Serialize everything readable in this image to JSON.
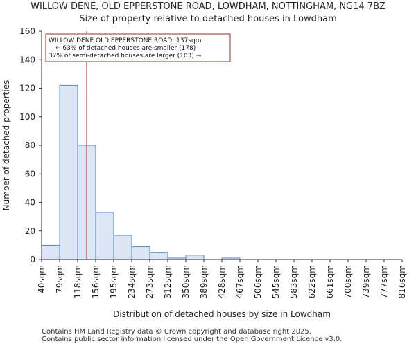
{
  "title_line1": "WILLOW DENE, OLD EPPERSTONE ROAD, LOWDHAM, NOTTINGHAM, NG14 7BZ",
  "title_line2": "Size of property relative to detached houses in Lowdham",
  "footer_line1": "Contains HM Land Registry data © Crown copyright and database right 2025.",
  "footer_line2": "Contains public sector information licensed under the Open Government Licence v3.0.",
  "colors": {
    "bar_fill": "#dce6f5",
    "bar_stroke": "#5a87c5",
    "marker": "#b22222"
  },
  "chart_data": {
    "type": "bar",
    "title": "Size of property relative to detached houses in Lowdham",
    "xlabel": "Distribution of detached houses by size in Lowdham",
    "ylabel": "Number of detached properties",
    "ylim": [
      0,
      160
    ],
    "yticks": [
      0,
      20,
      40,
      60,
      80,
      100,
      120,
      140,
      160
    ],
    "bin_edges": [
      40,
      79,
      118,
      156,
      195,
      234,
      273,
      312,
      350,
      389,
      428,
      467,
      506,
      545,
      583,
      622,
      661,
      700,
      739,
      777,
      816
    ],
    "tick_labels": [
      "40sqm",
      "79sqm",
      "118sqm",
      "156sqm",
      "195sqm",
      "234sqm",
      "273sqm",
      "312sqm",
      "350sqm",
      "389sqm",
      "428sqm",
      "467sqm",
      "506sqm",
      "545sqm",
      "583sqm",
      "622sqm",
      "661sqm",
      "700sqm",
      "739sqm",
      "777sqm",
      "816sqm"
    ],
    "values": [
      10,
      122,
      80,
      33,
      17,
      9,
      5,
      1,
      3,
      0,
      1,
      0,
      0,
      0,
      0,
      0,
      0,
      0,
      0,
      0
    ],
    "marker_value": 137,
    "annotation": {
      "line1": "WILLOW DENE OLD EPPERSTONE ROAD: 137sqm",
      "line2": "← 63% of detached houses are smaller (178)",
      "line3": "37% of semi-detached houses are larger (103) →"
    }
  }
}
